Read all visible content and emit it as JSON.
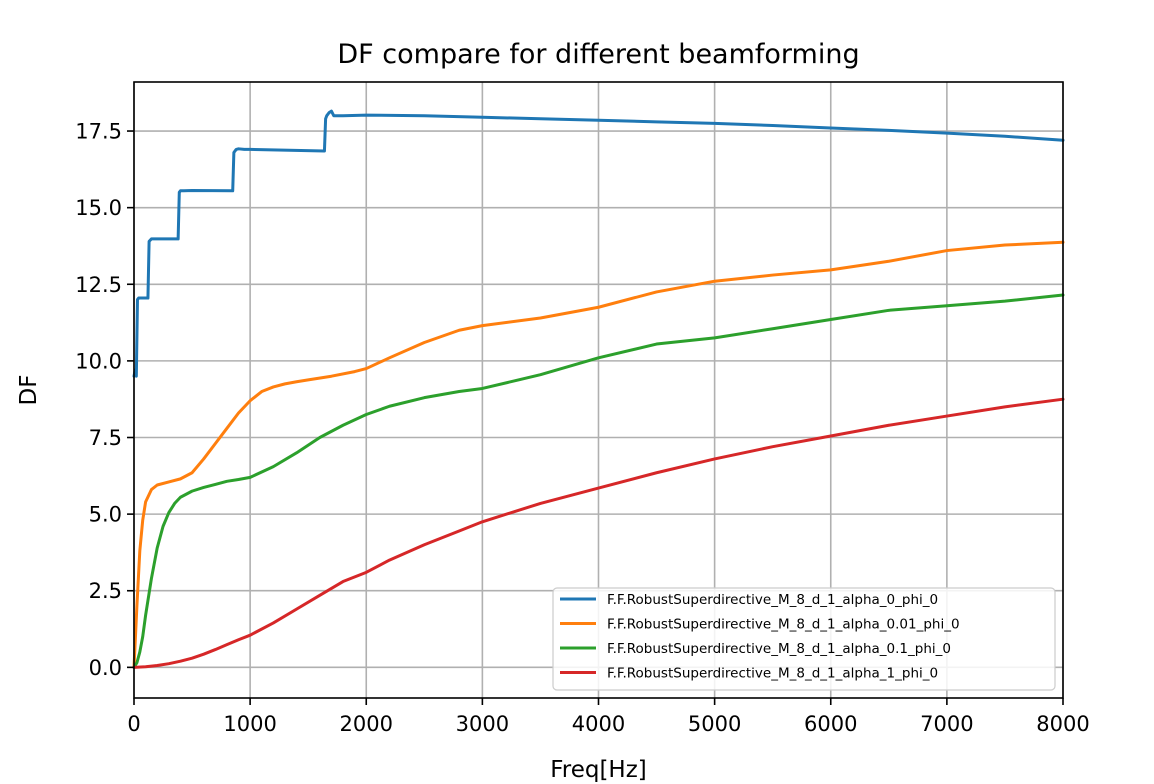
{
  "chart_data": {
    "type": "line",
    "title": "DF compare for different beamforming",
    "xlabel": "Freq[Hz]",
    "ylabel": "DF",
    "xlim": [
      0,
      8000
    ],
    "ylim": [
      -1.0,
      19.1
    ],
    "xticks": [
      0,
      1000,
      2000,
      3000,
      4000,
      5000,
      6000,
      7000,
      8000
    ],
    "xtick_labels": [
      "0",
      "1000",
      "2000",
      "3000",
      "4000",
      "5000",
      "6000",
      "7000",
      "8000"
    ],
    "yticks": [
      0.0,
      2.5,
      5.0,
      7.5,
      10.0,
      12.5,
      15.0,
      17.5
    ],
    "ytick_labels": [
      "0.0",
      "2.5",
      "5.0",
      "7.5",
      "10.0",
      "12.5",
      "15.0",
      "17.5"
    ],
    "grid": true,
    "legend_position": "lower-right",
    "series": [
      {
        "name": "F.F.RobustSuperdirective_M_8_d_1_alpha_0_phi_0",
        "color": "#1f77b4",
        "x": [
          0,
          10,
          20,
          30,
          40,
          120,
          130,
          150,
          380,
          390,
          400,
          430,
          500,
          850,
          860,
          880,
          900,
          950,
          1000,
          1640,
          1650,
          1660,
          1680,
          1700,
          1720,
          1800,
          2000,
          2500,
          3000,
          3500,
          4000,
          4500,
          5000,
          5500,
          6000,
          6500,
          7000,
          7500,
          8000
        ],
        "y": [
          9.5,
          9.7,
          9.5,
          12.0,
          12.05,
          12.05,
          13.9,
          13.98,
          13.98,
          15.5,
          15.55,
          15.55,
          15.56,
          15.55,
          16.8,
          16.9,
          16.92,
          16.9,
          16.9,
          16.85,
          17.9,
          18.0,
          18.1,
          18.15,
          18.0,
          18.0,
          18.02,
          18.0,
          17.95,
          17.9,
          17.85,
          17.8,
          17.75,
          17.68,
          17.6,
          17.52,
          17.43,
          17.33,
          17.2
        ]
      },
      {
        "name": "F.F.RobustSuperdirective_M_8_d_1_alpha_0.01_phi_0",
        "color": "#ff7f0e",
        "x": [
          0,
          25,
          50,
          75,
          100,
          150,
          200,
          300,
          400,
          500,
          600,
          700,
          800,
          900,
          1000,
          1100,
          1200,
          1300,
          1400,
          1500,
          1700,
          1900,
          2000,
          2200,
          2500,
          2800,
          3000,
          3500,
          4000,
          4500,
          5000,
          5500,
          6000,
          6500,
          7000,
          7500,
          8000
        ],
        "y": [
          0.0,
          2.0,
          3.8,
          4.8,
          5.4,
          5.8,
          5.95,
          6.05,
          6.15,
          6.35,
          6.8,
          7.3,
          7.8,
          8.3,
          8.7,
          9.0,
          9.15,
          9.25,
          9.32,
          9.38,
          9.5,
          9.65,
          9.75,
          10.1,
          10.6,
          11.0,
          11.15,
          11.4,
          11.75,
          12.25,
          12.6,
          12.8,
          12.97,
          13.25,
          13.6,
          13.78,
          13.87
        ]
      },
      {
        "name": "F.F.RobustSuperdirective_M_8_d_1_alpha_0.1_phi_0",
        "color": "#2ca02c",
        "x": [
          0,
          25,
          50,
          75,
          100,
          150,
          200,
          250,
          300,
          350,
          400,
          500,
          600,
          700,
          800,
          900,
          1000,
          1200,
          1400,
          1600,
          1800,
          2000,
          2200,
          2500,
          2800,
          3000,
          3500,
          4000,
          4500,
          5000,
          5500,
          6000,
          6500,
          7000,
          7500,
          8000
        ],
        "y": [
          0.0,
          0.15,
          0.5,
          1.0,
          1.7,
          2.9,
          3.9,
          4.6,
          5.05,
          5.35,
          5.55,
          5.75,
          5.87,
          5.97,
          6.07,
          6.13,
          6.2,
          6.55,
          7.0,
          7.5,
          7.9,
          8.25,
          8.52,
          8.8,
          9.0,
          9.1,
          9.55,
          10.1,
          10.55,
          10.75,
          11.05,
          11.35,
          11.65,
          11.8,
          11.95,
          12.15
        ]
      },
      {
        "name": "F.F.RobustSuperdirective_M_8_d_1_alpha_1_phi_0",
        "color": "#d62728",
        "x": [
          0,
          100,
          200,
          300,
          400,
          500,
          600,
          700,
          800,
          900,
          1000,
          1200,
          1400,
          1600,
          1800,
          2000,
          2200,
          2500,
          2800,
          3000,
          3500,
          4000,
          4500,
          5000,
          5500,
          6000,
          6500,
          7000,
          7500,
          8000
        ],
        "y": [
          0.0,
          0.02,
          0.06,
          0.12,
          0.2,
          0.3,
          0.43,
          0.58,
          0.74,
          0.9,
          1.05,
          1.45,
          1.9,
          2.35,
          2.8,
          3.1,
          3.5,
          4.0,
          4.45,
          4.75,
          5.35,
          5.85,
          6.35,
          6.8,
          7.2,
          7.55,
          7.9,
          8.2,
          8.5,
          8.75
        ]
      }
    ]
  }
}
